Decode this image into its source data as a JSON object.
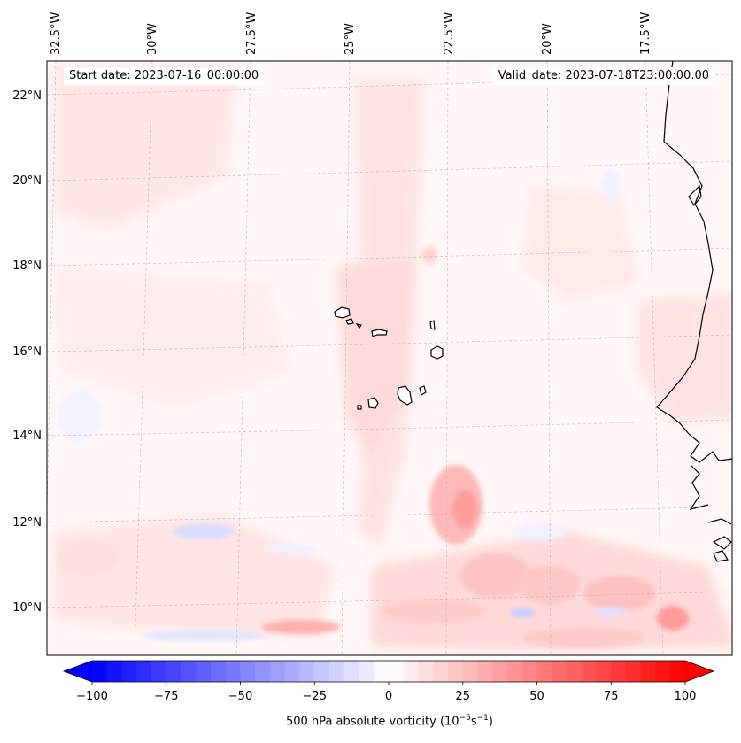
{
  "map": {
    "projection": "Lambert Conformal",
    "extent": {
      "lon_min": -32.7,
      "lon_max": -15.3,
      "lat_min": 8.9,
      "lat_max": 22.8
    },
    "top_lon_labels": [
      "32.5°W",
      "30°W",
      "27.5°W",
      "25°W",
      "22.5°W",
      "20°W",
      "17.5°W"
    ],
    "left_lat_labels": [
      "22°N",
      "20°N",
      "18°N",
      "16°N",
      "14°N",
      "12°N",
      "10°N"
    ],
    "features": [
      "Cabo Verde islands",
      "West African coastline"
    ]
  },
  "header": {
    "start_date": "Start date: 2023-07-16_00:00:00",
    "valid_date": "Valid_date: 2023-07-18T23:00:00.00"
  },
  "colorbar": {
    "ticks": [
      "−100",
      "−75",
      "−50",
      "−25",
      "0",
      "25",
      "50",
      "75",
      "100"
    ],
    "label_text": "500 hPa absolute vorticity (10",
    "label_exp1": "−5",
    "label_mid": "s",
    "label_exp2": "−1",
    "label_end": ")",
    "cmap": "bwr",
    "color_min": "#0000ff",
    "color_mid": "#ffffff",
    "color_max": "#ff0000"
  },
  "chart_data": {
    "type": "heatmap",
    "title": "",
    "variable": "500 hPa absolute vorticity",
    "units": "10^-5 s^-1",
    "vmin": -100,
    "vmax": 100,
    "levels_step": 5,
    "colorbar_ticks": [
      -100,
      -75,
      -50,
      -25,
      0,
      25,
      50,
      75,
      100
    ],
    "colors": {
      "negative": "#0000ff",
      "zero": "#ffffff",
      "positive": "#ff0000"
    }
  }
}
